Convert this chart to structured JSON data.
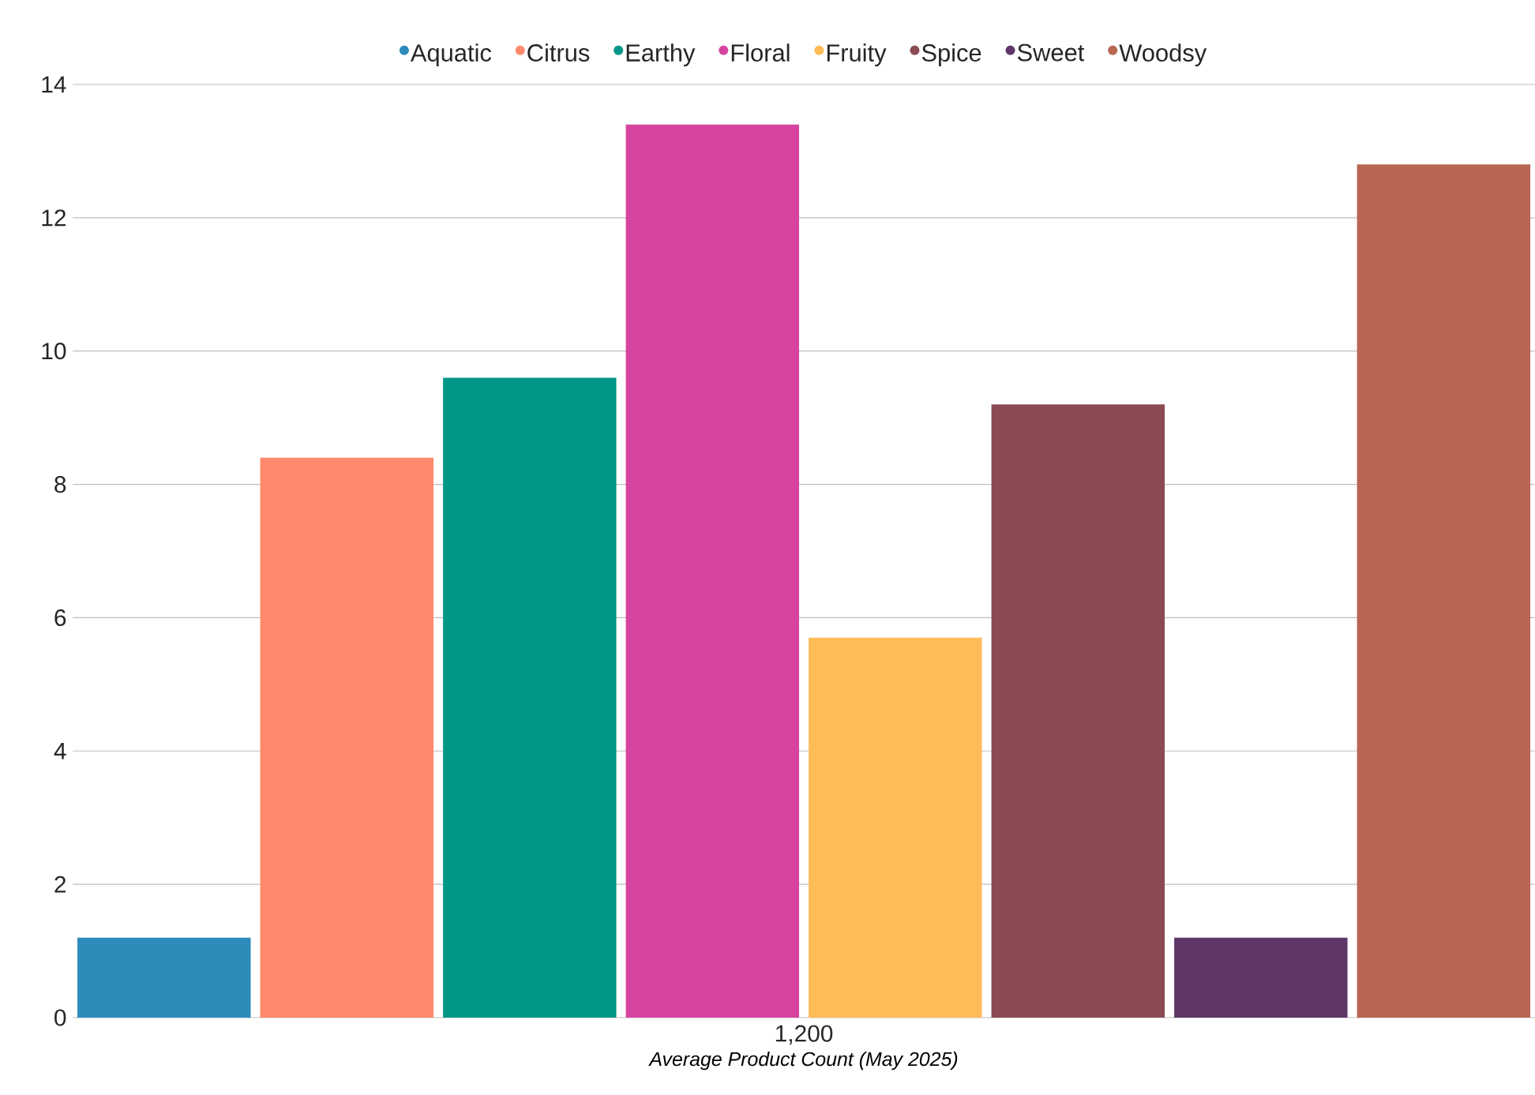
{
  "chart_data": {
    "type": "bar",
    "xlabel": "Average Product Count (May 2025)",
    "categories": [
      "1,200"
    ],
    "series": [
      {
        "name": "Aquatic",
        "color": "#2e8bba",
        "values": [
          1.2
        ]
      },
      {
        "name": "Citrus",
        "color": "#ff896b",
        "values": [
          8.4
        ]
      },
      {
        "name": "Earthy",
        "color": "#009688",
        "values": [
          9.6
        ]
      },
      {
        "name": "Floral",
        "color": "#d6449f",
        "values": [
          13.4
        ]
      },
      {
        "name": "Fruity",
        "color": "#ffbc58",
        "values": [
          5.7
        ]
      },
      {
        "name": "Spice",
        "color": "#8a4b53",
        "values": [
          9.2
        ]
      },
      {
        "name": "Sweet",
        "color": "#5e3768",
        "values": [
          1.2
        ]
      },
      {
        "name": "Woodsy",
        "color": "#b96655",
        "values": [
          12.8
        ]
      }
    ],
    "ylim": [
      0,
      14
    ],
    "yticks": [
      0,
      2,
      4,
      6,
      8,
      10,
      12,
      14
    ],
    "grid": "y",
    "legend": "top"
  }
}
